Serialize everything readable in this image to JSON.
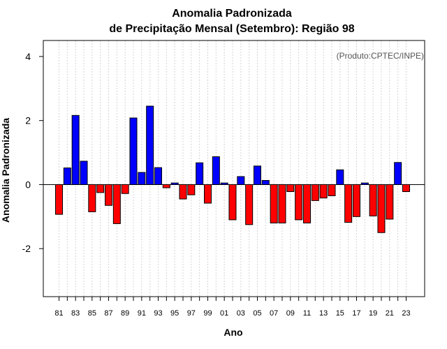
{
  "chart_data": {
    "type": "bar",
    "title": "Anomalia Padronizada",
    "subtitle": "de Precipitação Mensal (Setembro): Região 98",
    "xlabel": "Ano",
    "ylabel": "Anomalia Padronizada",
    "annotation": "(Produto:CPTEC/INPE)",
    "ylim": [
      -3.5,
      4.5
    ],
    "yticks": [
      -2,
      0,
      2,
      4
    ],
    "ytick_labels": [
      "-2",
      "0",
      "2",
      "4"
    ],
    "grid": "vertical dotted",
    "colors": {
      "positive": "#0000ff",
      "negative": "#ff0000"
    },
    "categories": [
      "1981",
      "1982",
      "1983",
      "1984",
      "1985",
      "1986",
      "1987",
      "1988",
      "1989",
      "1990",
      "1991",
      "1992",
      "1993",
      "1994",
      "1995",
      "1996",
      "1997",
      "1998",
      "1999",
      "2000",
      "2001",
      "2002",
      "2003",
      "2004",
      "2005",
      "2006",
      "2007",
      "2008",
      "2009",
      "2010",
      "2011",
      "2012",
      "2013",
      "2014",
      "2015",
      "2016",
      "2017",
      "2018",
      "2019",
      "2020",
      "2021",
      "2022",
      "2023"
    ],
    "xtick_labels": [
      "81",
      "83",
      "85",
      "87",
      "89",
      "91",
      "93",
      "95",
      "97",
      "99",
      "01",
      "03",
      "05",
      "07",
      "09",
      "11",
      "13",
      "15",
      "17",
      "19",
      "21",
      "23"
    ],
    "values": [
      -0.93,
      0.52,
      2.16,
      0.73,
      -0.85,
      -0.25,
      -0.65,
      -1.22,
      -0.28,
      2.08,
      0.38,
      2.45,
      0.53,
      -0.1,
      0.05,
      -0.45,
      -0.32,
      0.68,
      -0.58,
      0.87,
      0.05,
      -1.1,
      0.25,
      -1.25,
      0.58,
      0.13,
      -1.2,
      -1.2,
      -0.22,
      -1.1,
      -1.2,
      -0.5,
      -0.42,
      -0.35,
      0.46,
      -1.18,
      -1.0,
      0.05,
      -0.98,
      -1.5,
      -1.08,
      0.69,
      -0.22
    ]
  }
}
